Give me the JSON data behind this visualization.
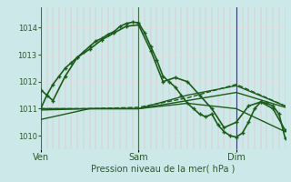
{
  "background_color": "#cce8e8",
  "plot_bg_color": "#cce8e8",
  "line_color": "#1a5c1a",
  "tick_color": "#2d5a2d",
  "xlabel": "Pression niveau de la mer( hPa )",
  "xtick_labels": [
    "Ven",
    "Sam",
    "Dim"
  ],
  "ylim": [
    1009.5,
    1014.75
  ],
  "yticks": [
    1010,
    1011,
    1012,
    1013,
    1014
  ],
  "xlim": [
    0,
    120
  ],
  "vline_positions": [
    0,
    48,
    96
  ],
  "vline_colors": [
    "#4a6a4a",
    "#4a6a4a",
    "#3a3a6a"
  ],
  "pink_grid_step": 3,
  "series": [
    {
      "x": [
        0,
        3,
        6,
        9,
        12,
        15,
        18,
        21,
        24,
        27,
        30,
        33,
        36,
        39,
        42,
        45,
        48,
        51,
        54,
        57,
        60,
        63,
        66,
        69,
        72,
        75,
        78,
        81,
        84,
        87,
        90,
        93,
        96,
        99,
        102,
        105,
        108,
        111,
        114,
        117,
        120
      ],
      "y": [
        1011.0,
        1011.5,
        1011.9,
        1012.2,
        1012.5,
        1012.7,
        1012.9,
        1013.1,
        1013.3,
        1013.5,
        1013.6,
        1013.75,
        1013.85,
        1014.05,
        1014.15,
        1014.2,
        1014.18,
        1013.8,
        1013.3,
        1012.8,
        1012.2,
        1012.0,
        1011.8,
        1011.5,
        1011.2,
        1011.0,
        1010.8,
        1010.7,
        1010.8,
        1010.4,
        1010.15,
        1010.0,
        1009.95,
        1010.1,
        1010.5,
        1011.0,
        1011.25,
        1011.2,
        1011.1,
        1010.8,
        1009.9
      ],
      "marker": "+",
      "markersize": 3.5,
      "linewidth": 1.2,
      "dashed": false
    },
    {
      "x": [
        0,
        6,
        12,
        18,
        24,
        30,
        36,
        42,
        48,
        54,
        60,
        66,
        72,
        78,
        84,
        90,
        96,
        102,
        108,
        114,
        120
      ],
      "y": [
        1011.7,
        1011.3,
        1012.2,
        1012.9,
        1013.2,
        1013.55,
        1013.8,
        1014.05,
        1014.1,
        1013.15,
        1012.0,
        1012.15,
        1012.0,
        1011.5,
        1011.0,
        1010.3,
        1010.5,
        1011.1,
        1011.25,
        1011.0,
        1010.2
      ],
      "marker": "+",
      "markersize": 3.5,
      "linewidth": 1.2,
      "dashed": false
    },
    {
      "x": [
        0,
        24,
        48,
        72,
        96,
        120
      ],
      "y": [
        1011.0,
        1011.0,
        1011.0,
        1011.5,
        1011.85,
        1011.1
      ],
      "marker": null,
      "linewidth": 1.0,
      "dashed": false
    },
    {
      "x": [
        0,
        24,
        48,
        72,
        96,
        120
      ],
      "y": [
        1010.95,
        1011.0,
        1011.0,
        1011.3,
        1011.6,
        1011.05
      ],
      "marker": null,
      "linewidth": 1.0,
      "dashed": false
    },
    {
      "x": [
        0,
        24,
        48,
        72,
        96,
        120
      ],
      "y": [
        1010.6,
        1011.0,
        1011.0,
        1011.2,
        1011.0,
        1010.15
      ],
      "marker": null,
      "linewidth": 1.0,
      "dashed": false
    },
    {
      "x": [
        0,
        24,
        48,
        72,
        96,
        120
      ],
      "y": [
        1011.0,
        1011.0,
        1011.05,
        1011.4,
        1011.9,
        1011.1
      ],
      "marker": null,
      "linewidth": 1.0,
      "dashed": true
    }
  ]
}
